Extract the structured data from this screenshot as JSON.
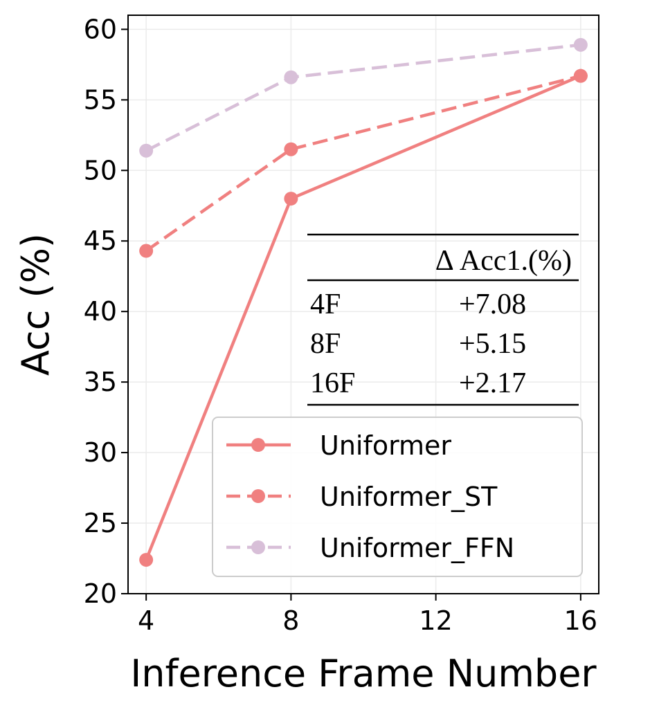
{
  "chart_data": {
    "type": "line",
    "xlabel": "Inference Frame Number",
    "ylabel": "Acc (%)",
    "x": [
      4,
      8,
      16
    ],
    "xticks": [
      4,
      8,
      12,
      16
    ],
    "yticks": [
      20,
      25,
      30,
      35,
      40,
      45,
      50,
      55,
      60
    ],
    "xlim": [
      3.5,
      16.5
    ],
    "ylim": [
      20,
      61
    ],
    "grid": true,
    "legend_position": "bottom-right",
    "series": [
      {
        "name": "Uniformer",
        "values": [
          22.4,
          48.0,
          56.7
        ],
        "color": "#f08080",
        "dash": "solid"
      },
      {
        "name": "Uniformer_ST",
        "values": [
          44.3,
          51.5,
          56.7
        ],
        "color": "#f08080",
        "dash": "dashed"
      },
      {
        "name": "Uniformer_FFN",
        "values": [
          51.4,
          56.6,
          58.9
        ],
        "color": "#d8bfd8",
        "dash": "dashed"
      }
    ],
    "table": {
      "header": "Δ Acc1.(%)",
      "rows": [
        {
          "label": "4F",
          "value": "+7.08"
        },
        {
          "label": "8F",
          "value": "+5.15"
        },
        {
          "label": "16F",
          "value": "+2.17"
        }
      ]
    }
  }
}
